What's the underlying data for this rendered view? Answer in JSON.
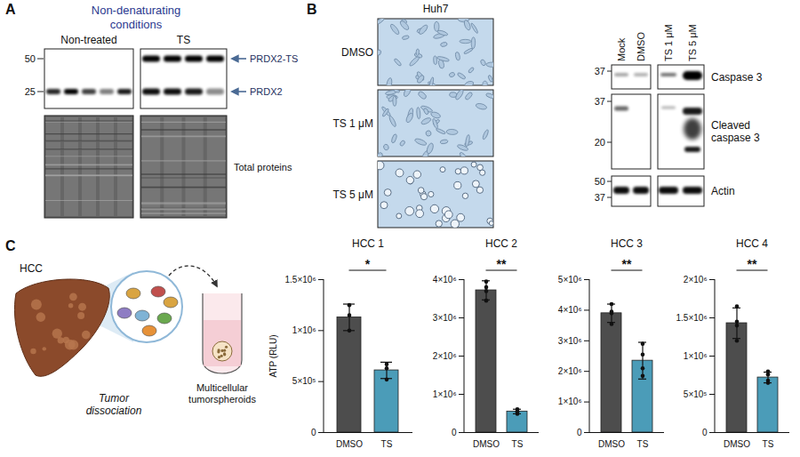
{
  "panel_a": {
    "letter": "A",
    "heading": "Non-denaturating conditions",
    "groups": [
      "Non-treated",
      "TS"
    ],
    "markers": [
      50,
      25
    ],
    "bands": [
      "PRDX2-TS",
      "PRDX2"
    ],
    "loading_label": "Total proteins"
  },
  "panel_b": {
    "letter": "B",
    "cell_line": "Huh7",
    "image_rows": [
      "DMSO",
      "TS 1 μM",
      "TS 5 μM"
    ],
    "lanes": [
      "Mock",
      "DMSO",
      "TS 1 μM",
      "TS 5 μM"
    ],
    "blots": [
      {
        "label": "Caspase 3",
        "markers": [
          37
        ]
      },
      {
        "label": "Cleaved caspase 3",
        "markers": [
          37,
          20
        ]
      },
      {
        "label": "Actin",
        "markers": [
          50,
          37
        ]
      }
    ]
  },
  "panel_c": {
    "letter": "C",
    "schematic": {
      "organ": "HCC",
      "step": "Tumor dissociation",
      "result": "Multicellular tumorspheroids"
    }
  },
  "chart_data": [
    {
      "type": "bar",
      "title": "HCC 1",
      "ylabel": "ATP (RLU)",
      "categories": [
        "DMSO",
        "TS"
      ],
      "values": [
        1130000,
        610000
      ],
      "errors": [
        130000,
        80000
      ],
      "points": [
        [
          1000000,
          1250000,
          1150000
        ],
        [
          520000,
          630000,
          670000
        ]
      ],
      "colors": [
        "#4d4d4d",
        "#4b9cb8"
      ],
      "ylim": [
        0,
        1500000
      ],
      "yticks": [
        0,
        {
          "value": 500000,
          "label": "5×10⁵"
        },
        {
          "value": 1000000,
          "label": "1×10⁶"
        },
        {
          "value": 1500000,
          "label": "1.5×10⁶"
        }
      ],
      "significance": "*"
    },
    {
      "type": "bar",
      "title": "HCC 2",
      "categories": [
        "DMSO",
        "TS"
      ],
      "values": [
        3720000,
        550000
      ],
      "errors": [
        250000,
        60000
      ],
      "points": [
        [
          3450000,
          3700000,
          3950000,
          3800000
        ],
        [
          490000,
          560000,
          610000,
          540000
        ]
      ],
      "colors": [
        "#4d4d4d",
        "#4b9cb8"
      ],
      "ylim": [
        0,
        4000000
      ],
      "yticks": [
        0,
        {
          "value": 1000000,
          "label": "1×10⁶"
        },
        {
          "value": 2000000,
          "label": "2×10⁶"
        },
        {
          "value": 3000000,
          "label": "3×10⁶"
        },
        {
          "value": 4000000,
          "label": "4×10⁶"
        }
      ],
      "significance": "**"
    },
    {
      "type": "bar",
      "title": "HCC 3",
      "categories": [
        "DMSO",
        "TS"
      ],
      "values": [
        3900000,
        2350000
      ],
      "errors": [
        300000,
        600000
      ],
      "points": [
        [
          3550000,
          4200000,
          3900000,
          3950000
        ],
        [
          1850000,
          2900000,
          2550000,
          2100000
        ]
      ],
      "colors": [
        "#4d4d4d",
        "#4b9cb8"
      ],
      "ylim": [
        0,
        5000000
      ],
      "yticks": [
        0,
        {
          "value": 1000000,
          "label": "1×10⁶"
        },
        {
          "value": 2000000,
          "label": "2×10⁶"
        },
        {
          "value": 3000000,
          "label": "3×10⁶"
        },
        {
          "value": 4000000,
          "label": "4×10⁶"
        },
        {
          "value": 5000000,
          "label": "5×10⁶"
        }
      ],
      "significance": "**"
    },
    {
      "type": "bar",
      "title": "HCC 4",
      "categories": [
        "DMSO",
        "TS"
      ],
      "values": [
        1430000,
        720000
      ],
      "errors": [
        200000,
        70000
      ],
      "points": [
        [
          1200000,
          1650000,
          1400000,
          1450000
        ],
        [
          650000,
          760000,
          800000,
          680000
        ]
      ],
      "colors": [
        "#4d4d4d",
        "#4b9cb8"
      ],
      "ylim": [
        0,
        2000000
      ],
      "yticks": [
        0,
        {
          "value": 500000,
          "label": "5×10⁵"
        },
        {
          "value": 1000000,
          "label": "1×10⁶"
        },
        {
          "value": 1500000,
          "label": "1.5×10⁶"
        },
        {
          "value": 2000000,
          "label": "2×10⁶"
        }
      ],
      "significance": "**"
    }
  ]
}
